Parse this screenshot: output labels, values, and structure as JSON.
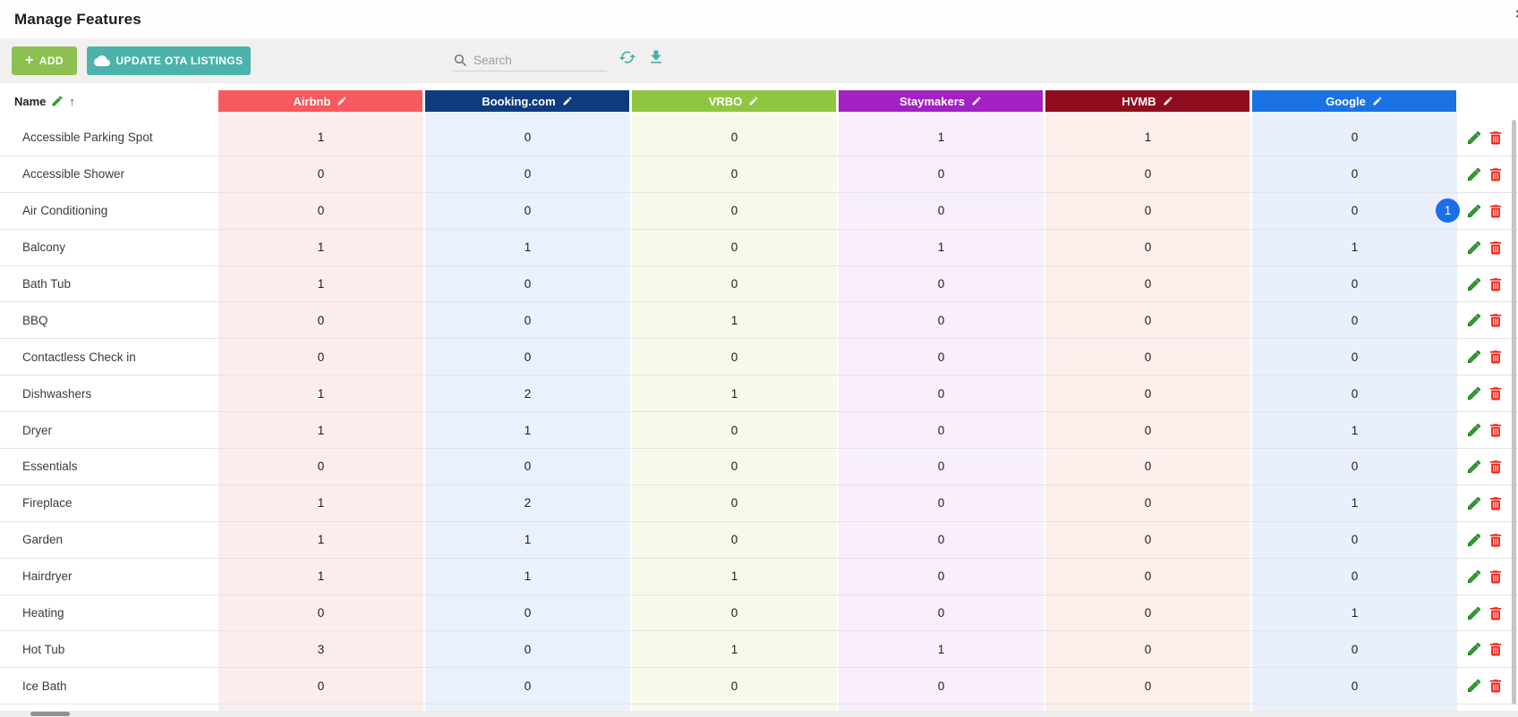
{
  "window": {
    "title": "Manage Features",
    "close_icon": "×"
  },
  "toolbar": {
    "add_button": {
      "label": "ADD",
      "color": "#8cc152"
    },
    "update_button": {
      "label": "UPDATE OTA LISTINGS",
      "color": "#4cb2ac"
    },
    "search": {
      "placeholder": "Search",
      "value": ""
    },
    "icon_color": "#45b0a9"
  },
  "table": {
    "name_column": {
      "label": "Name",
      "sort_icon": "↑"
    },
    "columns": [
      {
        "label": "Airbnb",
        "color": "#f7595e",
        "tint": "#fdecec"
      },
      {
        "label": "Booking.com",
        "color": "#0d3b7d",
        "tint": "#e9f1fc"
      },
      {
        "label": "VRBO",
        "color": "#8ec641",
        "tint": "#f7fae8"
      },
      {
        "label": "Staymakers",
        "color": "#a121c3",
        "tint": "#f9effc"
      },
      {
        "label": "HVMB",
        "color": "#8e0e1f",
        "tint": "#fdefec"
      },
      {
        "label": "Google",
        "color": "#1b72e4",
        "tint": "#e9f0fc"
      }
    ],
    "rows": [
      {
        "name": "Accessible Parking Spot",
        "values": [
          1,
          0,
          0,
          1,
          1,
          0
        ]
      },
      {
        "name": "Accessible Shower",
        "values": [
          0,
          0,
          0,
          0,
          0,
          0
        ]
      },
      {
        "name": "Air Conditioning",
        "values": [
          0,
          0,
          0,
          0,
          0,
          0
        ],
        "badge": "1"
      },
      {
        "name": "Balcony",
        "values": [
          1,
          1,
          0,
          1,
          0,
          1
        ]
      },
      {
        "name": "Bath Tub",
        "values": [
          1,
          0,
          0,
          0,
          0,
          0
        ]
      },
      {
        "name": "BBQ",
        "values": [
          0,
          0,
          1,
          0,
          0,
          0
        ]
      },
      {
        "name": "Contactless Check in",
        "values": [
          0,
          0,
          0,
          0,
          0,
          0
        ]
      },
      {
        "name": "Dishwashers",
        "values": [
          1,
          2,
          1,
          0,
          0,
          0
        ]
      },
      {
        "name": "Dryer",
        "values": [
          1,
          1,
          0,
          0,
          0,
          1
        ]
      },
      {
        "name": "Essentials",
        "values": [
          0,
          0,
          0,
          0,
          0,
          0
        ]
      },
      {
        "name": "Fireplace",
        "values": [
          1,
          2,
          0,
          0,
          0,
          1
        ]
      },
      {
        "name": "Garden",
        "values": [
          1,
          1,
          0,
          0,
          0,
          0
        ]
      },
      {
        "name": "Hairdryer",
        "values": [
          1,
          1,
          1,
          0,
          0,
          0
        ]
      },
      {
        "name": "Heating",
        "values": [
          0,
          0,
          0,
          0,
          0,
          1
        ]
      },
      {
        "name": "Hot Tub",
        "values": [
          3,
          0,
          1,
          1,
          0,
          0
        ]
      },
      {
        "name": "Ice Bath",
        "values": [
          0,
          0,
          0,
          0,
          0,
          0
        ]
      }
    ],
    "badge_color": "#1a6fe8",
    "edit_icon_color": "#27a327",
    "delete_icon_color": "#ea2318"
  }
}
